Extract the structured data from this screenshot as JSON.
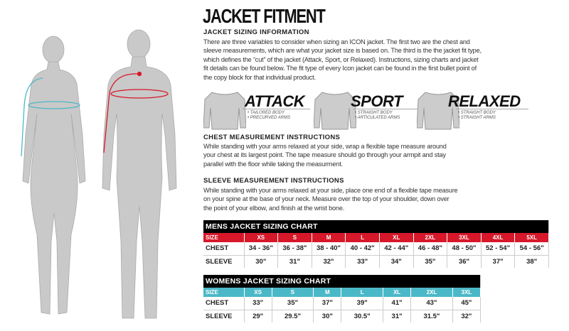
{
  "title": "JACKET FITMENT",
  "info": {
    "heading": "JACKET SIZING INFORMATION",
    "body": "There are three variables to consider when sizing an ICON jacket. The  first two are the chest and sleeve measurements, which are what your jacket size is based on. The third is the the jacket fit type, which defines the “cut” of the jacket (Attack, Sport, or Relaxed). Instructions, sizing charts and jacket fit details can be found below. The fit type of every Icon jacket can be found in the first bullet point of the copy block for that individual product."
  },
  "fits": [
    {
      "name": "ATTACK",
      "bullets": [
        "• TAILORED BODY",
        "• PRECURVED ARMS"
      ]
    },
    {
      "name": "SPORT",
      "bullets": [
        "• STRAIGHT BODY",
        "• ARTICULATED ARMS"
      ]
    },
    {
      "name": "RELAXED",
      "bullets": [
        "• STRAIGHT BODY",
        "• STRAIGHT ARMS"
      ]
    }
  ],
  "chest": {
    "heading": "CHEST MEASUREMENT INSTRUCTIONS",
    "body": "While standing with your arms relaxed at your side, wrap a flexible tape measure around your chest at its largest point. The tape measure should go through your armpit and stay parallel with the floor while taking the measurment."
  },
  "sleeve": {
    "heading": "SLEEVE MEASUREMENT INSTRUCTIONS",
    "body": "While standing with your arms relaxed at your side, place one end of a flexible tape measure on your spine at the base of your neck. Measure over the top of your shoulder, down over the point of your elbow, and finish at the wrist bone."
  },
  "mens": {
    "title": "MENS JACKET SIZING CHART",
    "color": "#d7182a",
    "sizes": [
      "SIZE",
      "XS",
      "S",
      "M",
      "L",
      "XL",
      "2XL",
      "3XL",
      "4XL",
      "5XL"
    ],
    "chest": [
      "CHEST",
      "34 - 36\"",
      "36 - 38\"",
      "38 - 40\"",
      "40 - 42\"",
      "42 - 44\"",
      "46 - 48\"",
      "48 - 50\"",
      "52 - 54\"",
      "54 - 56\""
    ],
    "sleeve": [
      "SLEEVE",
      "30\"",
      "31\"",
      "32\"",
      "33\"",
      "34\"",
      "35\"",
      "36\"",
      "37\"",
      "38\""
    ]
  },
  "womens": {
    "title": "WOMENS JACKET SIZING CHART",
    "color": "#4bb8c8",
    "sizes": [
      "SIZE",
      "XS",
      "S",
      "M",
      "L",
      "XL",
      "2XL",
      "3XL"
    ],
    "chest": [
      "CHEST",
      "33\"",
      "35\"",
      "37\"",
      "39\"",
      "41\"",
      "43\"",
      "45\""
    ],
    "sleeve": [
      "SLEEVE",
      "29\"",
      "29.5\"",
      "30\"",
      "30.5\"",
      "31\"",
      "31.5\"",
      "32\""
    ]
  }
}
